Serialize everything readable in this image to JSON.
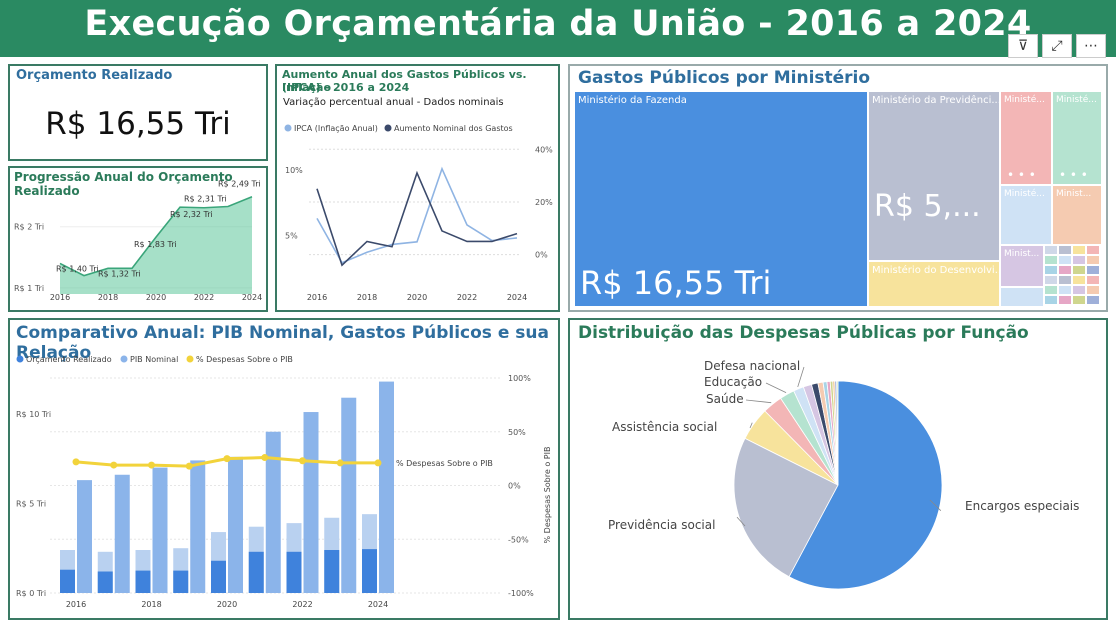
{
  "header": {
    "title": "Execução Orçamentária da União - 2016 a 2024"
  },
  "toolbar": {
    "filter_icon": "filter-icon",
    "focus_icon": "focus-mode-icon",
    "more_icon": "more-options-icon"
  },
  "kpi": {
    "title": "Orçamento Realizado",
    "value": "R$ 16,55 Tri"
  },
  "progressao": {
    "title": "Progressão Anual do Orçamento Realizado",
    "chart_data": {
      "type": "area",
      "x": [
        2016,
        2017,
        2018,
        2019,
        2020,
        2021,
        2022,
        2023,
        2024
      ],
      "values": [
        1.4,
        1.2,
        1.32,
        1.32,
        1.83,
        2.32,
        2.31,
        2.33,
        2.49
      ],
      "data_labels": [
        "R$ 1,40 Tri",
        "",
        "R$ 1,32 Tri",
        "",
        "R$ 1,83 Tri",
        "R$ 2,32 Tri",
        "R$ 2,31 Tri",
        "",
        "R$ 2,49 Tri"
      ],
      "ytick_labels": [
        "R$ 1 Tri",
        "R$ 2 Tri"
      ],
      "xtick_labels": [
        "2016",
        "2018",
        "2020",
        "2022",
        "2024"
      ],
      "ylim": [
        0.9,
        2.6
      ],
      "color": "#5cc79a"
    }
  },
  "inflacao": {
    "title_line1": "Aumento Anual dos Gastos Públicos vs. Inflação",
    "title_line2": "(IPCA) - 2016 a 2024",
    "subtitle": "Variação percentual anual - Dados nominais",
    "chart_data": {
      "type": "line",
      "x": [
        2016,
        2017,
        2018,
        2019,
        2020,
        2021,
        2022,
        2023,
        2024
      ],
      "series": [
        {
          "name": "IPCA (Inflação Anual)",
          "axis": "left",
          "color": "#8fb4e3",
          "values": [
            6.3,
            2.9,
            3.7,
            4.3,
            4.5,
            10.1,
            5.8,
            4.6,
            4.8
          ]
        },
        {
          "name": "Aumento Nominal dos Gastos",
          "axis": "right",
          "color": "#3b4a6b",
          "values": [
            25,
            -4,
            5,
            3,
            31,
            9,
            5,
            5,
            8
          ]
        }
      ],
      "left_ticks": [
        "10%",
        "5%"
      ],
      "right_ticks": [
        "40%",
        "20%",
        "0%"
      ],
      "xtick_labels": [
        "2016",
        "2018",
        "2020",
        "2022",
        "2024"
      ],
      "left_ylim": [
        1.5,
        12
      ],
      "right_ylim": [
        -10,
        42
      ]
    }
  },
  "treemap": {
    "title": "Gastos Públicos por Ministério",
    "tiles": [
      {
        "label": "Ministério da Fazenda",
        "value": "R$ 16,55 Tri",
        "color": "#4a8fdf"
      },
      {
        "label": "Ministério da Previdênci...",
        "value": "R$ 5,...",
        "color": "#b9bfd1"
      },
      {
        "label": "Ministério do Desenvolvi...",
        "color": "#f7e39c"
      },
      {
        "label": "Ministé...",
        "dots": "• • •",
        "color": "#f3b6b6"
      },
      {
        "label": "Ministé...",
        "dots": "• • •",
        "color": "#b5e3d0"
      },
      {
        "label": "Ministé...",
        "color": "#cfe2f5"
      },
      {
        "label": "Minist...",
        "color": "#f5cbb1"
      },
      {
        "label": "Minist...",
        "color": "#d6c6e3"
      }
    ]
  },
  "comparativo": {
    "title": "Comparativo Anual: PIB Nominal, Gastos Públicos e sua Relação",
    "legend": [
      "Orçamento Realizado",
      "PIB Nominal",
      "% Despesas Sobre o PIB"
    ],
    "line_label": "% Despesas Sobre o PIB",
    "right_axis_title": "% Despesas Sobre o PIB",
    "chart_data": {
      "type": "bar",
      "x": [
        2016,
        2017,
        2018,
        2019,
        2020,
        2021,
        2022,
        2023,
        2024
      ],
      "series": [
        {
          "name": "Orçamento Realizado",
          "color_dark": "#3f82dc",
          "color_light": "#b9d1f0",
          "lower": [
            1.3,
            1.2,
            1.25,
            1.25,
            1.8,
            2.3,
            2.3,
            2.4,
            2.45
          ],
          "total": [
            2.4,
            2.3,
            2.4,
            2.5,
            3.4,
            3.7,
            3.9,
            4.2,
            4.4
          ]
        },
        {
          "name": "PIB Nominal",
          "color": "#8bb4ea",
          "values": [
            6.3,
            6.6,
            7.0,
            7.4,
            7.6,
            9.0,
            10.1,
            10.9,
            11.8
          ]
        },
        {
          "name": "% Despesas Sobre o PIB",
          "color": "#f2d33b",
          "values": [
            22,
            19,
            19,
            18,
            25,
            26,
            23,
            21,
            21
          ]
        }
      ],
      "ytick_labels": [
        "R$ 0 Tri",
        "R$ 5 Tri",
        "R$ 10 Tri"
      ],
      "right_ticks": [
        "100%",
        "50%",
        "0%",
        "-50%",
        "-100%"
      ],
      "xtick_labels": [
        "2016",
        "2018",
        "2020",
        "2022",
        "2024"
      ],
      "ylim": [
        0,
        12
      ],
      "right_ylim": [
        -100,
        100
      ]
    }
  },
  "distribuicao": {
    "title": "Distribuição das Despesas Públicas por Função",
    "chart_data": {
      "type": "pie",
      "slices": [
        {
          "label": "Encargos especiais",
          "value": 57.8,
          "color": "#4a8fdf"
        },
        {
          "label": "Previdência social",
          "value": 24.6,
          "color": "#b9bfd1"
        },
        {
          "label": "Assistência social",
          "value": 5.2,
          "color": "#f7e39c"
        },
        {
          "label": "Saúde",
          "value": 3.1,
          "color": "#f3b6b6"
        },
        {
          "label": "Educação",
          "value": 2.3,
          "color": "#b5e3d0"
        },
        {
          "label": "Defesa nacional",
          "value": 1.6,
          "color": "#cfe2f5"
        },
        {
          "label": "",
          "value": 1.3,
          "color": "#d6c6e3"
        },
        {
          "label": "",
          "value": 1.0,
          "color": "#3b4a6b"
        },
        {
          "label": "",
          "value": 0.8,
          "color": "#f5cbb1"
        },
        {
          "label": "",
          "value": 0.6,
          "color": "#a8d4e6"
        },
        {
          "label": "",
          "value": 0.5,
          "color": "#e6a7c6"
        },
        {
          "label": "",
          "value": 0.4,
          "color": "#cfd68e"
        },
        {
          "label": "",
          "value": 0.3,
          "color": "#f0c089"
        },
        {
          "label": "",
          "value": 0.3,
          "color": "#9fb0d9"
        },
        {
          "label": "",
          "value": 0.2,
          "color": "#c6e6b0"
        }
      ]
    }
  }
}
